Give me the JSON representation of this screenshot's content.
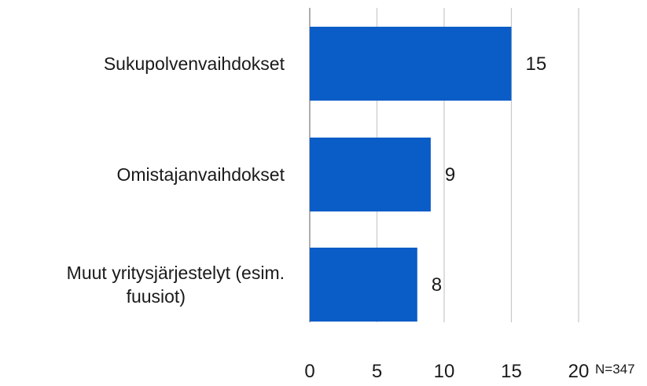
{
  "chart_data": {
    "type": "bar",
    "orientation": "horizontal",
    "categories": [
      [
        "Sukupolvenvaihdokset"
      ],
      [
        "Omistajanvaihdokset"
      ],
      [
        "Muut yritysjärjestelyt (esim.",
        "fuusiot)"
      ]
    ],
    "values": [
      15,
      9,
      8
    ],
    "data_labels": [
      "15",
      "9",
      "8"
    ],
    "x_ticks": [
      "0",
      "5",
      "10",
      "15",
      "20"
    ],
    "xlim": [
      0,
      20
    ],
    "grid": true,
    "legend": false,
    "bar_color": "#0a5cc7",
    "grid_color": "#c8c8c8",
    "note": "N=347"
  }
}
